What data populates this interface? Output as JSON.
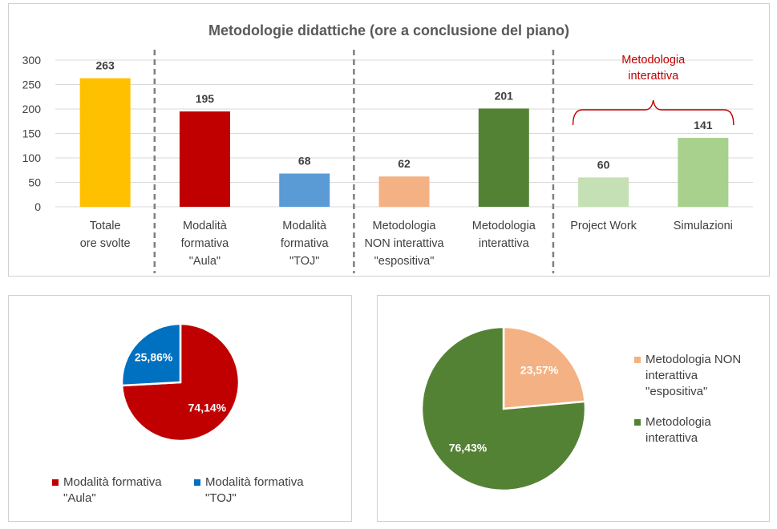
{
  "colors": {
    "totale": "#ffc000",
    "aula": "#c00000",
    "toj": "#5b9bd5",
    "non_interattiva": "#f4b183",
    "interattiva": "#548235",
    "project_work": "#c5e0b4",
    "simulazioni": "#a9d18e",
    "pie_aula": "#c00000",
    "pie_toj": "#0070c0",
    "pie_non_interattiva": "#f4b183",
    "pie_interattiva": "#548235",
    "annotation": "#c00000"
  },
  "chart_data": [
    {
      "type": "bar",
      "title": "Metodologie didattiche (ore a conclusione del piano)",
      "categories": [
        "Totale\nore svolte",
        "Modalità\nformativa\n\"Aula\"",
        "Modalità\nformativa\n\"TOJ\"",
        "Metodologia\nNON interattiva\n\"espositiva\"",
        "Metodologia\ninterattiva",
        "Project Work",
        "Simulazioni"
      ],
      "values": [
        263,
        195,
        68,
        62,
        201,
        60,
        141
      ],
      "data_labels": [
        "263",
        "195",
        "68",
        "62",
        "201",
        "60",
        "141"
      ],
      "bar_colors": [
        "#ffc000",
        "#c00000",
        "#5b9bd5",
        "#f4b183",
        "#548235",
        "#c5e0b4",
        "#a9d18e"
      ],
      "ylim": [
        0,
        300
      ],
      "yticks": [
        "0",
        "50",
        "100",
        "150",
        "200",
        "250",
        "300"
      ],
      "grid": true,
      "annotation": "Metodologia\ninterattiva"
    },
    {
      "type": "pie",
      "labels": [
        "Modalità formativa\n\"Aula\"",
        "Modalità formativa\n\"TOJ\""
      ],
      "values": [
        74.14,
        25.86
      ],
      "data_labels": [
        "74,14%",
        "25,86%"
      ],
      "colors": [
        "#c00000",
        "#0070c0"
      ],
      "legend": "bottom"
    },
    {
      "type": "pie",
      "labels": [
        "Metodologia NON\ninterattiva\n\"espositiva\"",
        "Metodologia\ninterattiva"
      ],
      "values": [
        23.57,
        76.43
      ],
      "data_labels": [
        "23,57%",
        "76,43%"
      ],
      "colors": [
        "#f4b183",
        "#548235"
      ],
      "legend": "right"
    }
  ]
}
